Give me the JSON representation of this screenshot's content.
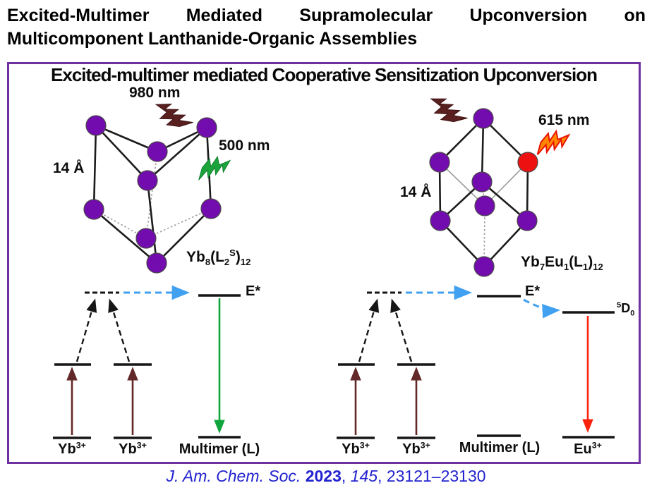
{
  "title": {
    "line1_words": [
      "Excited-Multimer",
      "Mediated",
      "Supramolecular",
      "Upconversion",
      "on"
    ],
    "line2": "Multicomponent Lanthanide-Organic Assemblies"
  },
  "panel": {
    "header": "Excited-multimer mediated Cooperative Sensitization Upconversion",
    "border_color": "#7030A0"
  },
  "left_assembly": {
    "excitation_wavelength": "980 nm",
    "emission_wavelength": "500 nm",
    "cage_size": "14 Å",
    "formula": [
      {
        "t": "Yb"
      },
      {
        "t": "8",
        "sub": true
      },
      {
        "t": "(L"
      },
      {
        "t": "2",
        "sub": true
      },
      {
        "t": "S",
        "sup": true
      },
      {
        "t": ")"
      },
      {
        "t": "12",
        "sub": true
      }
    ],
    "node_color": "#730CAE",
    "excitation_bolt_color": "#5A1F1F",
    "emission_bolt_color": "#1CA33C"
  },
  "right_assembly": {
    "emission_wavelength": "615 nm",
    "cage_size": "14 Å",
    "formula": [
      {
        "t": "Yb"
      },
      {
        "t": "7",
        "sub": true
      },
      {
        "t": "Eu"
      },
      {
        "t": "1",
        "sub": true
      },
      {
        "t": "(L"
      },
      {
        "t": "1",
        "sub": true
      },
      {
        "t": ")"
      },
      {
        "t": "12",
        "sub": true
      }
    ],
    "node_color": "#730CAE",
    "emitter_node_color": "#EE1111",
    "excitation_bolt_color": "#5A1F1F",
    "emission_bolt_color": "#FF8800"
  },
  "left_diagram": {
    "ion1": [
      {
        "t": "Yb"
      },
      {
        "t": "3+",
        "sup": true
      }
    ],
    "ion2": [
      {
        "t": "Yb"
      },
      {
        "t": "3+",
        "sup": true
      }
    ],
    "ligand_label": "Multimer (L)",
    "excited_state_label": "E*",
    "absorption_arrow_color": "#632828",
    "energy_transfer_arrow_color": "#41A1F0",
    "emission_arrow_color": "#0FA53C"
  },
  "right_diagram": {
    "ion1": [
      {
        "t": "Yb"
      },
      {
        "t": "3+",
        "sup": true
      }
    ],
    "ion2": [
      {
        "t": "Yb"
      },
      {
        "t": "3+",
        "sup": true
      }
    ],
    "ligand_label": "Multimer (L)",
    "excited_state_label": "E*",
    "eu_level_label": [
      {
        "t": "5",
        "sup": true
      },
      {
        "t": "D"
      },
      {
        "t": "0",
        "sub": true
      }
    ],
    "eu_ion_label": [
      {
        "t": "Eu"
      },
      {
        "t": "3+",
        "sup": true
      }
    ],
    "absorption_arrow_color": "#632828",
    "energy_transfer_arrow_color": "#41A1F0",
    "emission_arrow_color": "#F9230E"
  },
  "citation": {
    "segments": [
      {
        "t": "J. Am. Chem. Soc. ",
        "i": true
      },
      {
        "t": "2023",
        "b": true
      },
      {
        "t": ", "
      },
      {
        "t": "145",
        "i": true
      },
      {
        "t": ", 23121–23130"
      }
    ],
    "color": "#2222CF"
  }
}
